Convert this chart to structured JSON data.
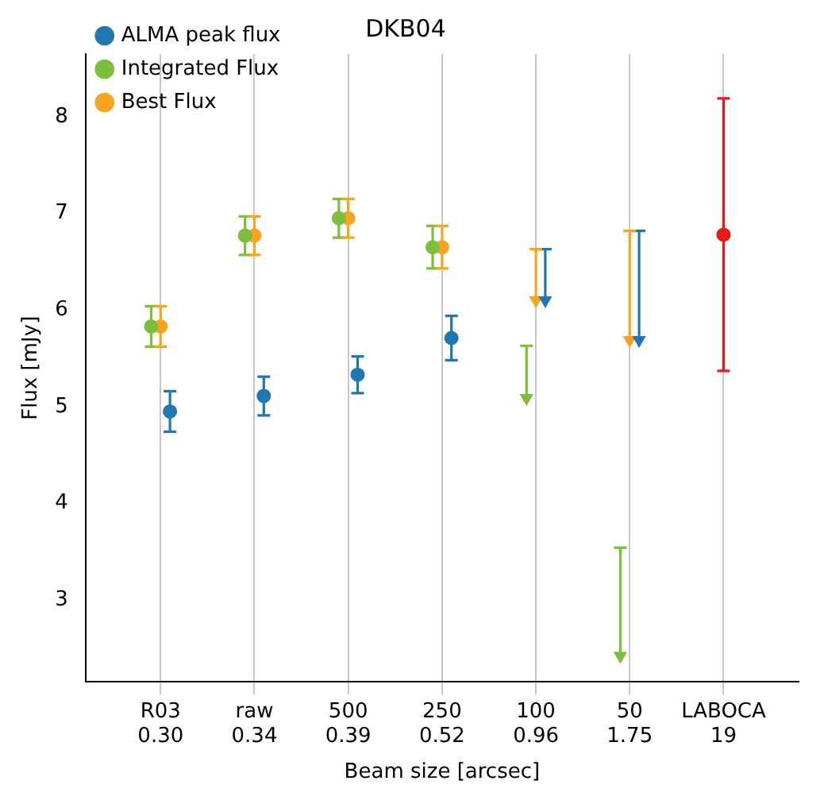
{
  "chart_data": {
    "type": "scatter",
    "title": "DKB04",
    "xlabel": "Beam size [arcsec]",
    "ylabel": "Flux [mJy]",
    "categories": [
      "R03\n0.30",
      "raw\n0.34",
      "500\n0.39",
      "250\n0.52",
      "100\n0.96",
      "50\n1.75",
      "LABOCA\n19"
    ],
    "series": [
      {
        "name": "ALMA peak flux",
        "color": "#1f77b4",
        "values": [
          4.95,
          5.11,
          5.33,
          5.71,
          6.1,
          5.69,
          null
        ],
        "errors": [
          0.21,
          0.2,
          0.19,
          0.23,
          [
            6.1,
            6.63
          ],
          [
            5.69,
            6.82
          ],
          null
        ]
      },
      {
        "name": "Integrated Flux",
        "color": "#7cbf3c",
        "values": [
          5.83,
          6.77,
          6.95,
          6.65,
          5.09,
          2.42,
          null
        ],
        "errors": [
          0.21,
          0.2,
          0.2,
          0.22,
          [
            5.09,
            5.63
          ],
          [
            2.42,
            3.54
          ],
          null
        ]
      },
      {
        "name": "Best Flux",
        "color": "#f9a41e",
        "values": [
          5.83,
          6.77,
          6.95,
          6.65,
          6.1,
          5.69,
          null
        ],
        "errors": [
          0.21,
          0.2,
          0.2,
          0.22,
          [
            6.1,
            6.63
          ],
          [
            5.69,
            6.82
          ],
          null
        ]
      },
      {
        "color": "#e8191a",
        "values": [
          null,
          null,
          null,
          null,
          null,
          null,
          6.78
        ],
        "errors": [
          null,
          null,
          null,
          null,
          null,
          null,
          1.41
        ]
      }
    ],
    "ylim": [
      2.15,
      8.65
    ],
    "yticks": [
      3,
      4,
      5,
      6,
      7,
      8
    ],
    "grid": "x",
    "legend": "top left",
    "marker": "circle"
  }
}
